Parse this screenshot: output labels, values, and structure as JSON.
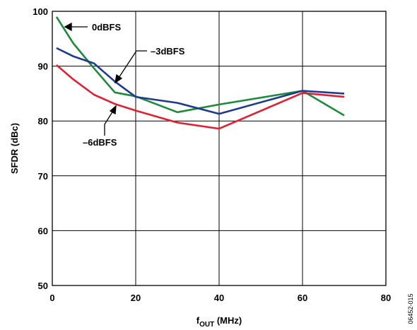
{
  "chart_data": {
    "type": "line",
    "xlabel": "f",
    "xlabel_sub": "OUT",
    "xlabel_unit": " (MHz)",
    "ylabel": "SFDR (dBc)",
    "xlim": [
      0,
      80
    ],
    "ylim": [
      50,
      100
    ],
    "x_ticks": [
      "0",
      "20",
      "40",
      "60",
      "80"
    ],
    "y_ticks": [
      "50",
      "60",
      "70",
      "80",
      "90",
      "100"
    ],
    "grid": true,
    "series": [
      {
        "name": "0dBFS",
        "color": "#1f8a3c",
        "points": [
          [
            1,
            99
          ],
          [
            5,
            94.2
          ],
          [
            10,
            89.6
          ],
          [
            15,
            85.2
          ],
          [
            20,
            84.5
          ],
          [
            30,
            81.6
          ],
          [
            40,
            83
          ],
          [
            60,
            85.5
          ],
          [
            70,
            81
          ]
        ]
      },
      {
        "name": "–3dBFS",
        "color": "#1f3a8a",
        "points": [
          [
            1,
            93.3
          ],
          [
            5,
            91.8
          ],
          [
            10,
            90.5
          ],
          [
            15,
            87.2
          ],
          [
            20,
            84.4
          ],
          [
            30,
            83.3
          ],
          [
            40,
            81.3
          ],
          [
            60,
            85.5
          ],
          [
            70,
            85
          ]
        ]
      },
      {
        "name": "–6dBFS",
        "color": "#dd2233",
        "points": [
          [
            1,
            90.2
          ],
          [
            5,
            87.6
          ],
          [
            10,
            84.8
          ],
          [
            15,
            83.1
          ],
          [
            20,
            81.9
          ],
          [
            30,
            79.7
          ],
          [
            40,
            78.6
          ],
          [
            60,
            85.1
          ],
          [
            70,
            84.4
          ]
        ]
      }
    ],
    "annotations": [
      {
        "text": "0dBFS",
        "series": "0dBFS"
      },
      {
        "text": "–3dBFS",
        "series": "–3dBFS"
      },
      {
        "text": "–6dBFS",
        "series": "–6dBFS"
      }
    ],
    "figure_id": "06452-015"
  }
}
